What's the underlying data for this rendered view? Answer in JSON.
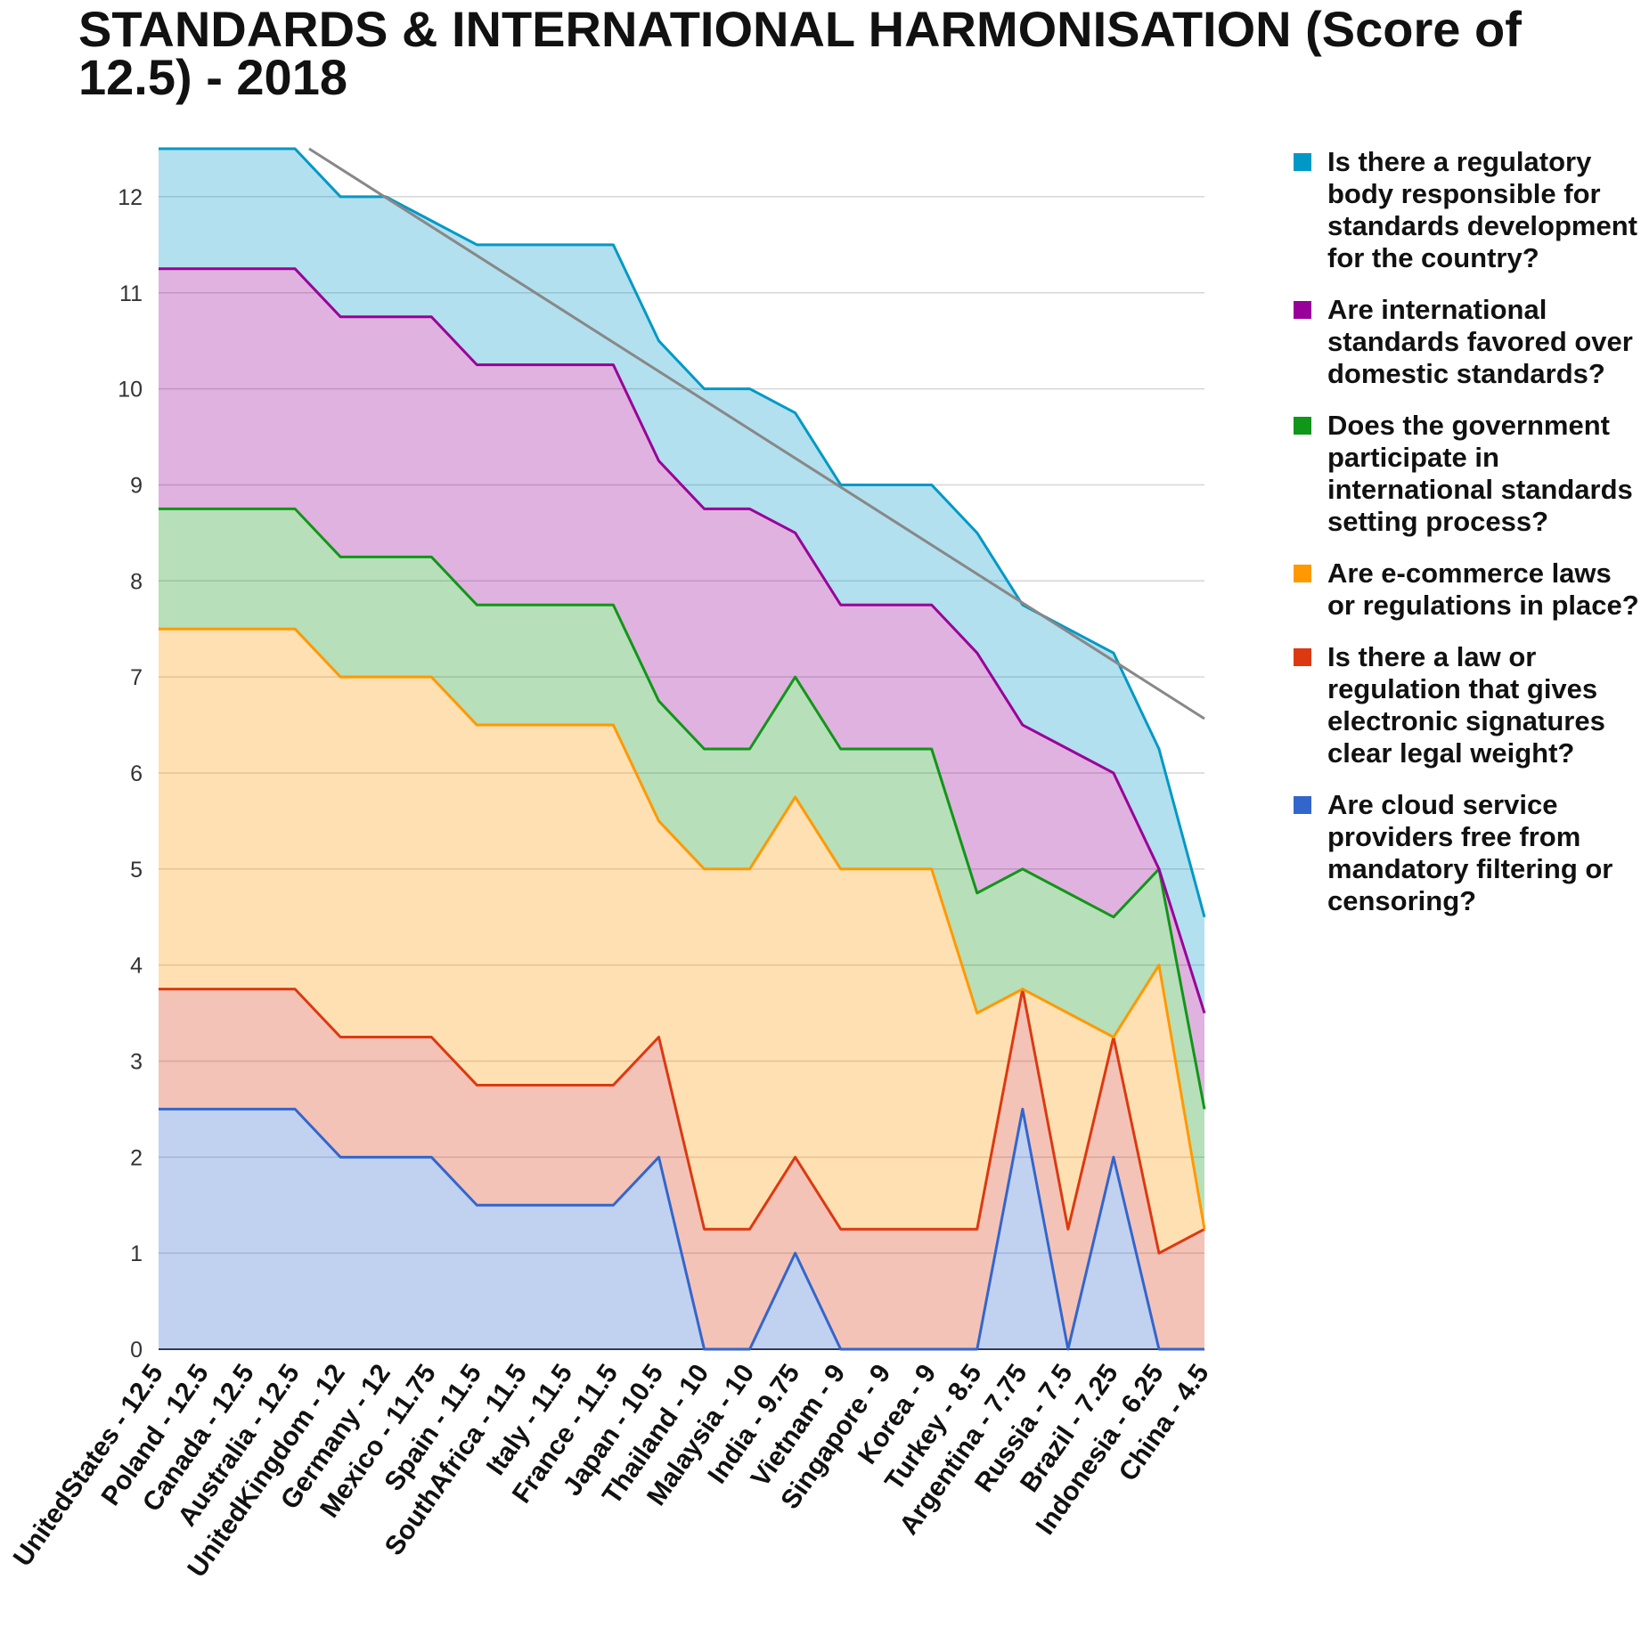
{
  "chart_data": {
    "type": "area",
    "title": "STANDARDS & INTERNATIONAL HARMONISATION (Score of 12.5) - 2018",
    "xlabel": "",
    "ylabel": "",
    "ylim": [
      0,
      12.5
    ],
    "y_ticks": [
      0,
      1,
      2,
      3,
      4,
      5,
      6,
      7,
      8,
      9,
      10,
      11,
      12
    ],
    "stacked": true,
    "grid": true,
    "legend_position": "right",
    "trendline": {
      "type": "linear",
      "color": "#888888"
    },
    "categories": [
      "UnitedStates - 12.5",
      "Poland - 12.5",
      "Canada - 12.5",
      "Australia - 12.5",
      "UnitedKingdom - 12",
      "Germany - 12",
      "Mexico - 11.75",
      "Spain - 11.5",
      "SouthAfrica - 11.5",
      "Italy - 11.5",
      "France - 11.5",
      "Japan - 10.5",
      "Thailand - 10",
      "Malaysia - 10",
      "India - 9.75",
      "Vietnam - 9",
      "Singapore - 9",
      "Korea - 9",
      "Turkey - 8.5",
      "Argentina - 7.75",
      "Russia - 7.5",
      "Brazil - 7.25",
      "Indonesia - 6.25",
      "China - 4.5"
    ],
    "series": [
      {
        "name": "Are cloud service providers free from mandatory filtering or censoring?",
        "color": "#3366cc",
        "values": [
          2.5,
          2.5,
          2.5,
          2.5,
          2,
          2,
          2,
          1.5,
          1.5,
          1.5,
          1.5,
          2,
          0,
          0,
          1,
          0,
          0,
          0,
          0,
          2.5,
          0,
          2,
          0,
          0
        ]
      },
      {
        "name": "Is there a law or regulation that gives electronic signatures clear legal weight?",
        "color": "#dc3912",
        "values": [
          1.25,
          1.25,
          1.25,
          1.25,
          1.25,
          1.25,
          1.25,
          1.25,
          1.25,
          1.25,
          1.25,
          1.25,
          1.25,
          1.25,
          1,
          1.25,
          1.25,
          1.25,
          1.25,
          1.25,
          1.25,
          1.25,
          1,
          1.25
        ]
      },
      {
        "name": "Are e-commerce laws or regulations in place?",
        "color": "#ff9900",
        "values": [
          3.75,
          3.75,
          3.75,
          3.75,
          3.75,
          3.75,
          3.75,
          3.75,
          3.75,
          3.75,
          3.75,
          2.25,
          3.75,
          3.75,
          3.75,
          3.75,
          3.75,
          3.75,
          2.25,
          0,
          2.25,
          0,
          3,
          0
        ]
      },
      {
        "name": "Does the government participate in international standards setting process?",
        "color": "#109618",
        "values": [
          1.25,
          1.25,
          1.25,
          1.25,
          1.25,
          1.25,
          1.25,
          1.25,
          1.25,
          1.25,
          1.25,
          1.25,
          1.25,
          1.25,
          1.25,
          1.25,
          1.25,
          1.25,
          1.25,
          1.25,
          1.25,
          1.25,
          1,
          1.25
        ]
      },
      {
        "name": "Are international standards favored over domestic standards?",
        "color": "#990099",
        "values": [
          2.5,
          2.5,
          2.5,
          2.5,
          2.5,
          2.5,
          2.5,
          2.5,
          2.5,
          2.5,
          2.5,
          2.5,
          2.5,
          2.5,
          1.5,
          1.5,
          1.5,
          1.5,
          2.5,
          1.5,
          1.5,
          1.5,
          0,
          1
        ]
      },
      {
        "name": "Is there a regulatory body responsible for standards development for the country?",
        "color": "#0099c6",
        "values": [
          1.25,
          1.25,
          1.25,
          1.25,
          1.25,
          1.25,
          1,
          1.25,
          1.25,
          1.25,
          1.25,
          1.25,
          1.25,
          1.25,
          1.25,
          1.25,
          1.25,
          1.25,
          1.25,
          1.25,
          1.25,
          1.25,
          1.25,
          1
        ]
      }
    ]
  }
}
